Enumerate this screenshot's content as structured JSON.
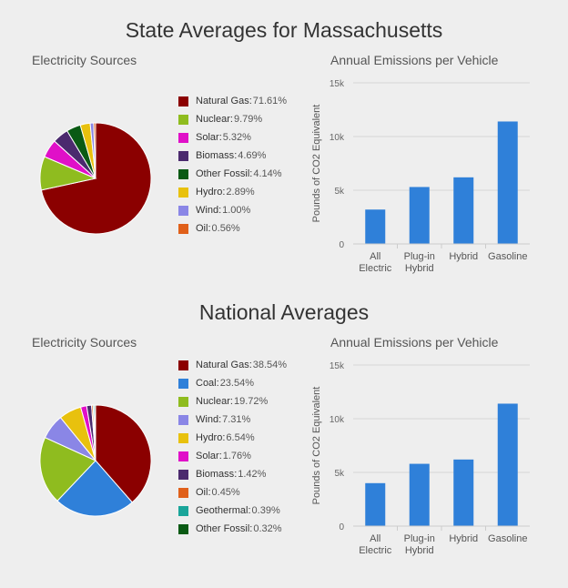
{
  "charts": [
    {
      "title": "State Averages for Massachusetts",
      "sources_title": "Electricity Sources",
      "emissions_title": "Annual Emissions per Vehicle",
      "pie": {
        "type": "pie",
        "slices": [
          {
            "label": "Natural Gas",
            "value": 71.61,
            "display": "71.61%",
            "color": "#8b0000"
          },
          {
            "label": "Nuclear",
            "value": 9.79,
            "display": "9.79%",
            "color": "#8fbc1f"
          },
          {
            "label": "Solar",
            "value": 5.32,
            "display": "5.32%",
            "color": "#e010c8"
          },
          {
            "label": "Biomass",
            "value": 4.69,
            "display": "4.69%",
            "color": "#4b2a6e"
          },
          {
            "label": "Other Fossil",
            "value": 4.14,
            "display": "4.14%",
            "color": "#0a5a14"
          },
          {
            "label": "Hydro",
            "value": 2.89,
            "display": "2.89%",
            "color": "#e8c10e"
          },
          {
            "label": "Wind",
            "value": 1.0,
            "display": "1.00%",
            "color": "#8a86e6"
          },
          {
            "label": "Oil",
            "value": 0.56,
            "display": "0.56%",
            "color": "#e0601a"
          }
        ]
      },
      "bar": {
        "type": "bar",
        "categories": [
          [
            "All",
            "Electric"
          ],
          [
            "Plug-in",
            "Hybrid"
          ],
          [
            "Hybrid"
          ],
          [
            "Gasoline"
          ]
        ],
        "values": [
          3200,
          5300,
          6200,
          11400
        ],
        "ylabel": "Pounds of CO2 Equivalent",
        "ylim": [
          0,
          15000
        ],
        "yticks": [
          {
            "value": 0,
            "label": "0"
          },
          {
            "value": 5000,
            "label": "5k"
          },
          {
            "value": 10000,
            "label": "10k"
          },
          {
            "value": 15000,
            "label": "15k"
          }
        ],
        "bar_color": "#2f80d9"
      }
    },
    {
      "title": "National Averages",
      "sources_title": "Electricity Sources",
      "emissions_title": "Annual Emissions per Vehicle",
      "pie": {
        "type": "pie",
        "slices": [
          {
            "label": "Natural Gas",
            "value": 38.54,
            "display": "38.54%",
            "color": "#8b0000"
          },
          {
            "label": "Coal",
            "value": 23.54,
            "display": "23.54%",
            "color": "#2f80d9"
          },
          {
            "label": "Nuclear",
            "value": 19.72,
            "display": "19.72%",
            "color": "#8fbc1f"
          },
          {
            "label": "Wind",
            "value": 7.31,
            "display": "7.31%",
            "color": "#8a86e6"
          },
          {
            "label": "Hydro",
            "value": 6.54,
            "display": "6.54%",
            "color": "#e8c10e"
          },
          {
            "label": "Solar",
            "value": 1.76,
            "display": "1.76%",
            "color": "#e010c8"
          },
          {
            "label": "Biomass",
            "value": 1.42,
            "display": "1.42%",
            "color": "#4b2a6e"
          },
          {
            "label": "Oil",
            "value": 0.45,
            "display": "0.45%",
            "color": "#e0601a"
          },
          {
            "label": "Geothermal",
            "value": 0.39,
            "display": "0.39%",
            "color": "#1aa59a"
          },
          {
            "label": "Other Fossil",
            "value": 0.32,
            "display": "0.32%",
            "color": "#0a5a14"
          }
        ]
      },
      "bar": {
        "type": "bar",
        "categories": [
          [
            "All",
            "Electric"
          ],
          [
            "Plug-in",
            "Hybrid"
          ],
          [
            "Hybrid"
          ],
          [
            "Gasoline"
          ]
        ],
        "values": [
          4000,
          5800,
          6200,
          11400
        ],
        "ylabel": "Pounds of CO2 Equivalent",
        "ylim": [
          0,
          15000
        ],
        "yticks": [
          {
            "value": 0,
            "label": "0"
          },
          {
            "value": 5000,
            "label": "5k"
          },
          {
            "value": 10000,
            "label": "10k"
          },
          {
            "value": 15000,
            "label": "15k"
          }
        ],
        "bar_color": "#2f80d9"
      }
    }
  ]
}
